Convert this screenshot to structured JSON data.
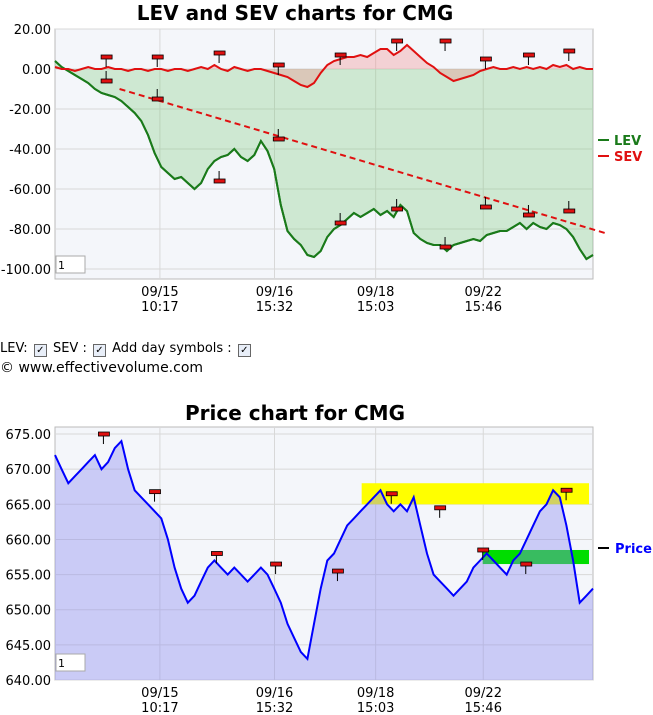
{
  "chart_data": [
    {
      "type": "area",
      "title": "LEV and SEV charts for CMG",
      "ylim": [
        -105,
        20
      ],
      "y_ticks": [
        "20.00",
        "0.00",
        "-20.00",
        "-40.00",
        "-60.00",
        "-80.00",
        "-100.00"
      ],
      "y_tick_values": [
        20,
        0,
        -20,
        -40,
        -60,
        -80,
        -100
      ],
      "x_ticks": [
        {
          "day": "09/15",
          "time": "10:17"
        },
        {
          "day": "09/16",
          "time": "15:32"
        },
        {
          "day": "09/18",
          "time": "15:03"
        },
        {
          "day": "09/22",
          "time": "15:46"
        }
      ],
      "zoom_box": "1",
      "legend": {
        "placement": "right",
        "items": [
          {
            "name": "LEV",
            "color": "#1a7a1a"
          },
          {
            "name": "SEV",
            "color": "#e01010"
          }
        ]
      },
      "series": [
        {
          "name": "LEV",
          "color": "#1a7a1a",
          "values": [
            4,
            1,
            -1,
            -3,
            -5,
            -7,
            -10,
            -12,
            -13,
            -14,
            -16,
            -19,
            -22,
            -26,
            -33,
            -42,
            -49,
            -52,
            -55,
            -54,
            -57,
            -60,
            -57,
            -50,
            -46,
            -44,
            -43,
            -40,
            -44,
            -46,
            -43,
            -36,
            -41,
            -50,
            -68,
            -81,
            -85,
            -88,
            -93,
            -94,
            -91,
            -84,
            -80,
            -78,
            -75,
            -72,
            -74,
            -72,
            -70,
            -73,
            -71,
            -74,
            -68,
            -71,
            -82,
            -85,
            -87,
            -88,
            -88,
            -91,
            -88,
            -87,
            -86,
            -85,
            -86,
            -83,
            -82,
            -81,
            -81,
            -79,
            -77,
            -80,
            -77,
            -79,
            -80,
            -77,
            -78,
            -80,
            -84,
            -90,
            -95,
            -93
          ]
        },
        {
          "name": "SEV",
          "color": "#e01010",
          "values": [
            1,
            0,
            0,
            -1,
            0,
            1,
            0,
            0,
            1,
            0,
            0,
            -1,
            0,
            0,
            -1,
            0,
            0,
            -1,
            0,
            0,
            -1,
            0,
            1,
            0,
            2,
            0,
            -1,
            1,
            0,
            -1,
            0,
            0,
            -1,
            -2,
            -3,
            -4,
            -6,
            -8,
            -9,
            -7,
            -2,
            2,
            4,
            5,
            6,
            6,
            7,
            6,
            8,
            10,
            10,
            7,
            9,
            12,
            9,
            6,
            3,
            1,
            -2,
            -4,
            -6,
            -5,
            -4,
            -3,
            -1,
            0,
            1,
            0,
            0,
            1,
            0,
            1,
            0,
            1,
            0,
            2,
            1,
            2,
            0,
            1,
            0,
            0
          ]
        },
        {
          "name": "trend",
          "color": "#e01010",
          "style": "dashed",
          "x": [
            0.12,
            1.0
          ],
          "y": [
            -10,
            -82
          ]
        }
      ],
      "day_symbols": [
        {
          "series": "LEV",
          "x": 0.095,
          "y": -6
        },
        {
          "series": "LEV",
          "x": 0.19,
          "y": -15
        },
        {
          "series": "LEV",
          "x": 0.305,
          "y": -56
        },
        {
          "series": "LEV",
          "x": 0.415,
          "y": -35
        },
        {
          "series": "LEV",
          "x": 0.53,
          "y": -77
        },
        {
          "series": "LEV",
          "x": 0.635,
          "y": -70
        },
        {
          "series": "LEV",
          "x": 0.725,
          "y": -89
        },
        {
          "series": "LEV",
          "x": 0.8,
          "y": -69
        },
        {
          "series": "LEV",
          "x": 0.88,
          "y": -73
        },
        {
          "series": "LEV",
          "x": 0.955,
          "y": -71
        },
        {
          "series": "SEV",
          "x": 0.095,
          "y": 6
        },
        {
          "series": "SEV",
          "x": 0.19,
          "y": 6
        },
        {
          "series": "SEV",
          "x": 0.305,
          "y": 8
        },
        {
          "series": "SEV",
          "x": 0.415,
          "y": 2
        },
        {
          "series": "SEV",
          "x": 0.53,
          "y": 7
        },
        {
          "series": "SEV",
          "x": 0.635,
          "y": 14
        },
        {
          "series": "SEV",
          "x": 0.725,
          "y": 14
        },
        {
          "series": "SEV",
          "x": 0.8,
          "y": 5
        },
        {
          "series": "SEV",
          "x": 0.88,
          "y": 7
        },
        {
          "series": "SEV",
          "x": 0.955,
          "y": 9
        }
      ]
    },
    {
      "type": "area",
      "title": "Price chart for CMG",
      "ylim": [
        640,
        676
      ],
      "y_ticks": [
        "675.00",
        "670.00",
        "665.00",
        "660.00",
        "655.00",
        "650.00",
        "645.00",
        "640.00"
      ],
      "y_tick_values": [
        675,
        670,
        665,
        660,
        655,
        650,
        645,
        640
      ],
      "x_ticks": [
        {
          "day": "09/15",
          "time": "10:17"
        },
        {
          "day": "09/16",
          "time": "15:32"
        },
        {
          "day": "09/18",
          "time": "15:03"
        },
        {
          "day": "09/22",
          "time": "15:46"
        }
      ],
      "zoom_box": "1",
      "legend": {
        "placement": "right",
        "items": [
          {
            "name": "Price",
            "color": "#0000ff"
          }
        ]
      },
      "series": [
        {
          "name": "Price",
          "color": "#0000ff",
          "values": [
            672,
            670,
            668,
            669,
            670,
            671,
            672,
            670,
            671,
            673,
            674,
            670,
            667,
            666,
            665,
            664,
            663,
            660,
            656,
            653,
            651,
            652,
            654,
            656,
            657,
            656,
            655,
            656,
            655,
            654,
            655,
            656,
            655,
            653,
            651,
            648,
            646,
            644,
            643,
            648,
            653,
            657,
            658,
            660,
            662,
            663,
            664,
            665,
            666,
            667,
            665,
            664,
            665,
            664,
            666,
            662,
            658,
            655,
            654,
            653,
            652,
            653,
            654,
            656,
            657,
            658,
            657,
            656,
            655,
            657,
            658,
            660,
            662,
            664,
            665,
            667,
            666,
            662,
            657,
            651,
            652,
            653
          ]
        }
      ],
      "resistance_zones": [
        {
          "color": "#ffff00",
          "x_start": 0.57,
          "x_end": 1.0,
          "y_low": 665,
          "y_high": 668
        },
        {
          "color": "#00dd00",
          "x_start": 0.795,
          "x_end": 1.0,
          "y_low": 656.5,
          "y_high": 658.5
        }
      ],
      "day_symbols": [
        {
          "x": 0.09,
          "y": 675
        },
        {
          "x": 0.185,
          "y": 666.8
        },
        {
          "x": 0.3,
          "y": 658
        },
        {
          "x": 0.41,
          "y": 656.5
        },
        {
          "x": 0.525,
          "y": 655.5
        },
        {
          "x": 0.625,
          "y": 666.5
        },
        {
          "x": 0.715,
          "y": 664.5
        },
        {
          "x": 0.795,
          "y": 658.5
        },
        {
          "x": 0.875,
          "y": 656.5
        },
        {
          "x": 0.95,
          "y": 667
        }
      ]
    }
  ],
  "controls": {
    "lev_label": "LEV:",
    "sev_label": "SEV :",
    "day_symbols_label": "Add day symbols :",
    "check": "✓"
  },
  "copyright": "© www.effectivevolume.com"
}
